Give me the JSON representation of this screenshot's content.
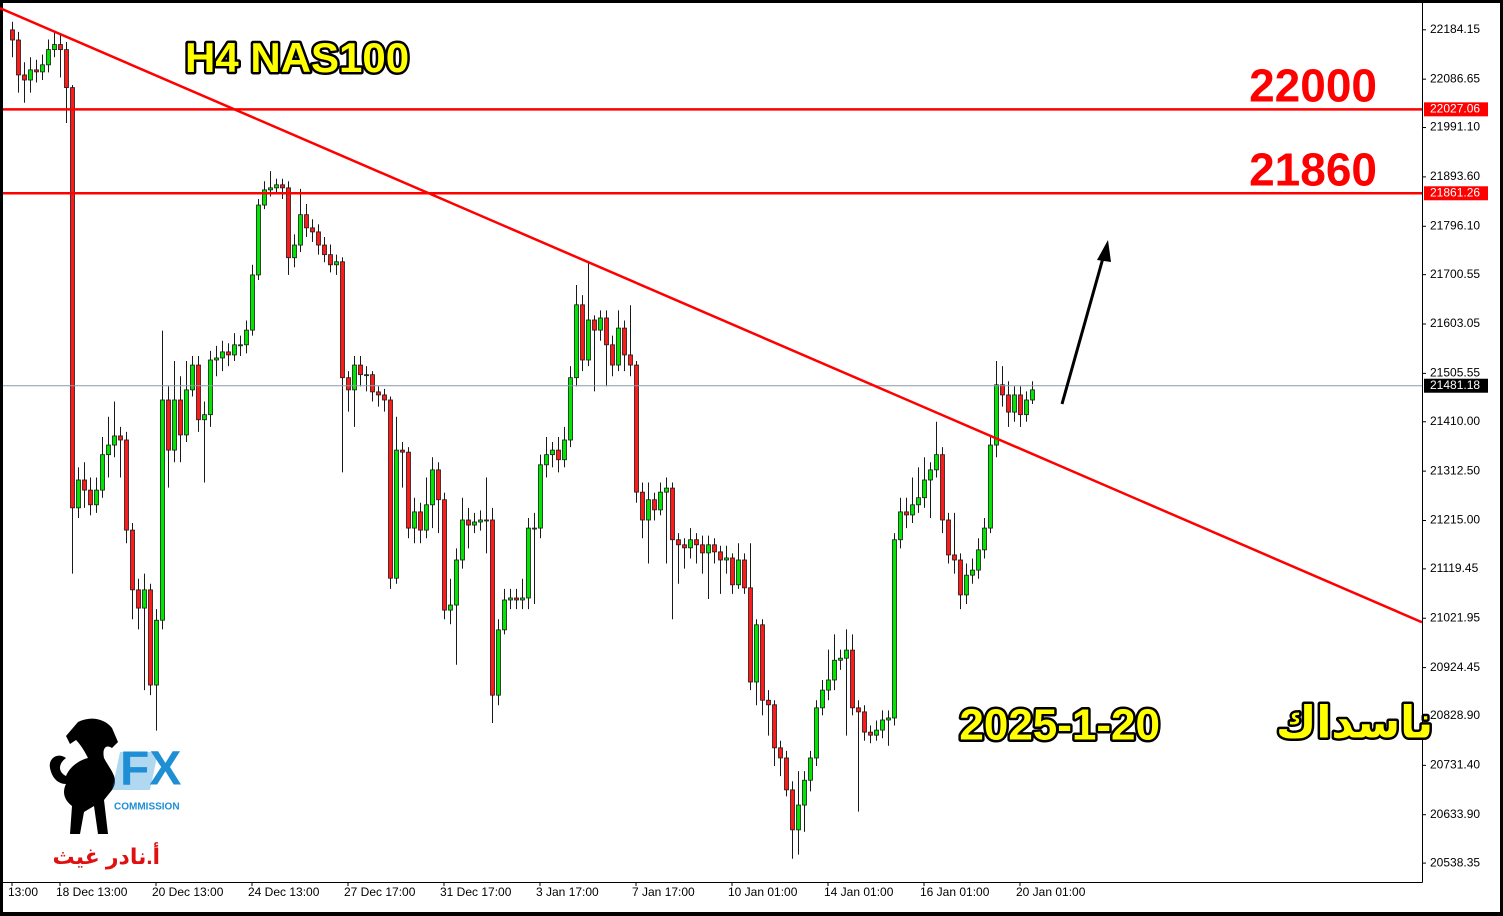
{
  "chart_data": {
    "type": "candlestick",
    "title": "H4 NAS100",
    "categories": [
      "13:00",
      null,
      null,
      null,
      null,
      null,
      null,
      null,
      "18 Dec 13:00",
      null,
      null,
      null,
      null,
      null,
      null,
      null,
      null,
      null,
      null,
      null,
      null,
      null,
      null,
      null,
      "20 Dec 13:00",
      null,
      null,
      null,
      null,
      null,
      null,
      null,
      null,
      null,
      null,
      null,
      null,
      null,
      null,
      null,
      "24 Dec 13:00",
      null,
      null,
      null,
      null,
      null,
      null,
      null,
      null,
      null,
      null,
      null,
      null,
      null,
      null,
      null,
      "27 Dec 17:00",
      null,
      null,
      null,
      null,
      null,
      null,
      null,
      null,
      null,
      null,
      null,
      null,
      null,
      null,
      null,
      "31 Dec 17:00",
      null,
      null,
      null,
      null,
      null,
      null,
      null,
      null,
      null,
      null,
      null,
      null,
      null,
      null,
      null,
      "3 Jan 17:00",
      null,
      null,
      null,
      null,
      null,
      null,
      null,
      null,
      null,
      null,
      null,
      null,
      null,
      null,
      null,
      "7 Jan 17:00",
      null,
      null,
      null,
      null,
      null,
      null,
      null,
      null,
      null,
      null,
      null,
      null,
      null,
      null,
      null,
      "10 Jan 01:00",
      null,
      null,
      null,
      null,
      null,
      null,
      null,
      null,
      null,
      null,
      null,
      null,
      null,
      null,
      null,
      "14 Jan 01:00",
      null,
      null,
      null,
      null,
      null,
      null,
      null,
      null,
      null,
      null,
      null,
      null,
      null,
      null,
      null,
      "16 Jan 01:00",
      null,
      null,
      null,
      null,
      null,
      null,
      null,
      null,
      null,
      null,
      null,
      null,
      null,
      null,
      null,
      "20 Jan 01:00",
      null,
      null
    ],
    "open": [
      22184,
      22164,
      22095,
      22085,
      22105,
      22101,
      22115,
      22145,
      22155,
      22145,
      22070,
      21240,
      21295,
      21275,
      21246,
      21275,
      21345,
      21364,
      21382,
      21374,
      21196,
      21078,
      21042,
      21078,
      20890,
      21018,
      21453,
      21354,
      21453,
      21384,
      21473,
      21522,
      21414,
      21424,
      21532,
      21536,
      21548,
      21542,
      21562,
      21562,
      21591,
      21700,
      21838,
      21868,
      21872,
      21878,
      21872,
      21734,
      21759,
      21819,
      21793,
      21785,
      21759,
      21740,
      21720,
      21726,
      21497,
      21473,
      21522,
      21503,
      21503,
      21469,
      21463,
      21453,
      21101,
      21354,
      21350,
      21200,
      21232,
      21196,
      21246,
      21315,
      21256,
      21038,
      21048,
      21137,
      21216,
      21206,
      21212,
      21216,
      21216,
      20870,
      20999,
      21058,
      21062,
      21058,
      21062,
      21200,
      21200,
      21325,
      21345,
      21354,
      21335,
      21374,
      21497,
      21641,
      21532,
      21611,
      21591,
      21615,
      21562,
      21522,
      21595,
      21542,
      21522,
      21271,
      21216,
      21256,
      21236,
      21271,
      21279,
      21177,
      21167,
      21161,
      21177,
      21167,
      21151,
      21167,
      21153,
      21137,
      21141,
      21088,
      21137,
      21082,
      20896,
      21009,
      20860,
      20851,
      20766,
      20746,
      20683,
      20604,
      20653,
      20702,
      20746,
      20845,
      20880,
      20900,
      20939,
      20943,
      20959,
      20845,
      20837,
      20797,
      20791,
      20801,
      20821,
      20825,
      21177,
      21232,
      21226,
      21246,
      21260,
      21295,
      21315,
      21345,
      21216,
      21147,
      21137,
      21068,
      21107,
      21117,
      21157,
      21200,
      21364,
      21483,
      21463,
      21429,
      21463,
      21424,
      21453
    ],
    "high": [
      22200,
      22180,
      22120,
      22130,
      22125,
      22135,
      22165,
      22180,
      22175,
      22160,
      22075,
      21320,
      21330,
      21300,
      21300,
      21380,
      21420,
      21450,
      21400,
      21390,
      21210,
      21100,
      21110,
      21090,
      21040,
      21590,
      21480,
      21530,
      21500,
      21530,
      21540,
      21540,
      21450,
      21550,
      21560,
      21570,
      21565,
      21585,
      21580,
      21610,
      21720,
      21850,
      21885,
      21905,
      21890,
      21890,
      21885,
      21780,
      21870,
      21840,
      21810,
      21800,
      21775,
      21760,
      21740,
      21735,
      21510,
      21540,
      21540,
      21520,
      21510,
      21480,
      21475,
      21460,
      21420,
      21370,
      21360,
      21260,
      21250,
      21300,
      21340,
      21330,
      21270,
      21100,
      21160,
      21260,
      21240,
      21230,
      21235,
      21300,
      21240,
      21020,
      21080,
      21080,
      21080,
      21100,
      21220,
      21230,
      21345,
      21380,
      21370,
      21380,
      21400,
      21520,
      21680,
      21660,
      21725,
      21620,
      21630,
      21630,
      21580,
      21630,
      21610,
      21640,
      21530,
      21290,
      21290,
      21270,
      21290,
      21300,
      21290,
      21190,
      21180,
      21200,
      21190,
      21185,
      21185,
      21180,
      21165,
      21165,
      21150,
      21170,
      21150,
      21170,
      21020,
      21020,
      20880,
      20860,
      20780,
      20760,
      20700,
      20720,
      20720,
      20760,
      20860,
      20900,
      20960,
      20990,
      20960,
      21000,
      20990,
      20860,
      20850,
      20810,
      20820,
      20840,
      20840,
      21190,
      21260,
      21260,
      21300,
      21320,
      21340,
      21330,
      21410,
      21360,
      21230,
      21230,
      21150,
      21130,
      21140,
      21180,
      21220,
      21380,
      21530,
      21520,
      21490,
      21480,
      21480,
      21470,
      21490
    ],
    "low": [
      22130,
      22060,
      22040,
      22060,
      22080,
      22085,
      22100,
      22130,
      22090,
      22000,
      21110,
      21220,
      21240,
      21225,
      21230,
      21260,
      21300,
      21340,
      21300,
      21170,
      21020,
      21000,
      20880,
      20870,
      20800,
      21000,
      21280,
      21330,
      21330,
      21370,
      21460,
      21390,
      21290,
      21400,
      21500,
      21510,
      21520,
      21530,
      21540,
      21545,
      21580,
      21690,
      21830,
      21855,
      21860,
      21850,
      21700,
      21715,
      21745,
      21775,
      21765,
      21740,
      21725,
      21705,
      21700,
      21310,
      21430,
      21400,
      21480,
      21470,
      21450,
      21440,
      21430,
      21080,
      21090,
      21280,
      21180,
      21170,
      21170,
      21180,
      21200,
      21190,
      21020,
      21010,
      20930,
      21120,
      21160,
      21190,
      21195,
      21150,
      20815,
      20850,
      20990,
      21040,
      21040,
      21040,
      21040,
      21050,
      21180,
      21300,
      21320,
      21310,
      21320,
      21360,
      21480,
      21510,
      21520,
      21470,
      21570,
      21480,
      21500,
      21510,
      21510,
      21500,
      21250,
      21180,
      21130,
      21215,
      21225,
      21130,
      21020,
      21090,
      21120,
      21140,
      21130,
      21110,
      21060,
      21130,
      21070,
      21110,
      21070,
      21080,
      21070,
      20880,
      20850,
      20830,
      20790,
      20730,
      20710,
      20670,
      20547,
      20555,
      20600,
      20680,
      20730,
      20830,
      20860,
      20880,
      20920,
      20790,
      20830,
      20640,
      20780,
      20775,
      20780,
      20785,
      20770,
      20810,
      21160,
      21200,
      21210,
      21230,
      21240,
      21220,
      21300,
      21190,
      21130,
      21110,
      21040,
      21050,
      21090,
      21100,
      21140,
      21190,
      21340,
      21440,
      21400,
      21410,
      21400,
      21410,
      21445
    ],
    "close": [
      22164,
      22095,
      22085,
      22105,
      22101,
      22115,
      22145,
      22155,
      22145,
      22070,
      21240,
      21295,
      21275,
      21246,
      21275,
      21345,
      21364,
      21382,
      21374,
      21196,
      21078,
      21042,
      21078,
      20890,
      21018,
      21453,
      21354,
      21453,
      21384,
      21473,
      21522,
      21414,
      21424,
      21532,
      21536,
      21548,
      21542,
      21562,
      21562,
      21591,
      21700,
      21838,
      21868,
      21872,
      21878,
      21872,
      21734,
      21759,
      21819,
      21793,
      21785,
      21759,
      21740,
      21720,
      21726,
      21497,
      21473,
      21522,
      21503,
      21503,
      21469,
      21463,
      21453,
      21101,
      21354,
      21350,
      21200,
      21232,
      21196,
      21246,
      21315,
      21256,
      21038,
      21048,
      21137,
      21216,
      21206,
      21212,
      21216,
      21216,
      20870,
      20999,
      21058,
      21062,
      21058,
      21062,
      21200,
      21200,
      21325,
      21345,
      21354,
      21335,
      21374,
      21497,
      21641,
      21532,
      21611,
      21591,
      21615,
      21562,
      21522,
      21595,
      21542,
      21522,
      21271,
      21216,
      21256,
      21236,
      21271,
      21279,
      21177,
      21167,
      21161,
      21177,
      21167,
      21151,
      21167,
      21153,
      21137,
      21141,
      21088,
      21137,
      21082,
      20896,
      21009,
      20860,
      20851,
      20766,
      20746,
      20683,
      20604,
      20653,
      20702,
      20746,
      20845,
      20880,
      20900,
      20939,
      20943,
      20959,
      20845,
      20837,
      20797,
      20791,
      20801,
      20821,
      20825,
      21177,
      21232,
      21226,
      21246,
      21260,
      21295,
      21315,
      21345,
      21216,
      21147,
      21137,
      21068,
      21107,
      21117,
      21157,
      21200,
      21364,
      21483,
      21463,
      21429,
      21463,
      21424,
      21453,
      21473
    ],
    "up_color": "#00e600",
    "down_color": "#ff1a1a",
    "wick_color": "#1a1a1a",
    "ylim": [
      20501,
      22243
    ],
    "yticks": [
      22184.15,
      22086.65,
      {
        "value": 21991.1,
        "label": "21991.10"
      },
      {
        "value": 21893.6,
        "label": "21893.60"
      },
      {
        "value": 21796.1,
        "label": "21796.10"
      },
      21700.55,
      21603.05,
      21505.55,
      {
        "value": 21410.0,
        "label": "21410.00"
      },
      {
        "value": 21312.5,
        "label": "21312.50"
      },
      {
        "value": 21215.0,
        "label": "21215.00"
      },
      21119.45,
      21021.95,
      20924.45,
      {
        "value": 20828.9,
        "label": "20828.90"
      },
      {
        "value": 20731.4,
        "label": "20731.40"
      },
      {
        "value": 20633.9,
        "label": "20633.90"
      },
      20538.35
    ],
    "levels": [
      {
        "value": 22027.06,
        "annotation": "22000",
        "color": "#ff0000"
      },
      {
        "value": 21861.26,
        "annotation": "21860",
        "color": "#ff0000"
      }
    ],
    "current_price": 21481.18,
    "trendline": [
      22227,
      21014
    ],
    "trendline_color": "#ff0000",
    "annotation_date": "2025-1-20",
    "annotation_name": "ناسداك",
    "brand": "FX",
    "brand_sub": "COMMISSION",
    "author": "أ.نادر غيث"
  }
}
